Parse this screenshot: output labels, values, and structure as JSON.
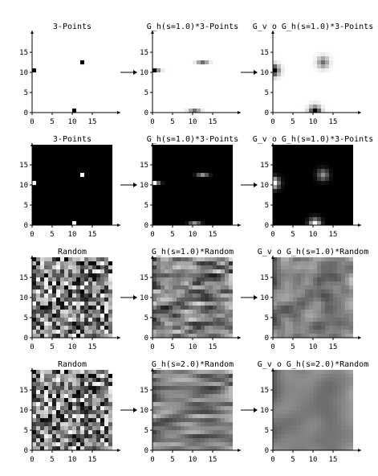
{
  "figure": {
    "background": "#ffffff",
    "arrow_glyph": "→"
  },
  "chart_data": [
    {
      "row": 0,
      "col": 0,
      "type": "heatmap",
      "title": "3-Points",
      "colormap": "gray_r",
      "xlim": [
        0,
        20
      ],
      "ylim": [
        0,
        20
      ],
      "xticks": [
        0,
        5,
        10,
        15
      ],
      "yticks": [
        0,
        5,
        10,
        15
      ],
      "signal": "points",
      "points": [
        [
          0,
          10
        ],
        [
          12,
          12
        ],
        [
          10,
          0
        ]
      ],
      "blur_h": 0,
      "blur_v": 0
    },
    {
      "row": 0,
      "col": 1,
      "type": "heatmap",
      "title": "G_h(s=1.0)*3-Points",
      "colormap": "gray_r",
      "xlim": [
        0,
        20
      ],
      "ylim": [
        0,
        20
      ],
      "xticks": [
        0,
        5,
        10,
        15
      ],
      "yticks": [
        0,
        5,
        10,
        15
      ],
      "signal": "points",
      "points": [
        [
          0,
          10
        ],
        [
          12,
          12
        ],
        [
          10,
          0
        ]
      ],
      "blur_h": 1.0,
      "blur_v": 0
    },
    {
      "row": 0,
      "col": 2,
      "type": "heatmap",
      "title": "G_v o G_h(s=1.0)*3-Points",
      "colormap": "gray_r",
      "xlim": [
        0,
        20
      ],
      "ylim": [
        0,
        20
      ],
      "xticks": [
        0,
        5,
        10,
        15
      ],
      "yticks": [
        0,
        5,
        10,
        15
      ],
      "signal": "points",
      "points": [
        [
          0,
          10
        ],
        [
          12,
          12
        ],
        [
          10,
          0
        ]
      ],
      "blur_h": 1.0,
      "blur_v": 1.0
    },
    {
      "row": 1,
      "col": 0,
      "type": "heatmap",
      "title": "3-Points",
      "colormap": "gray",
      "xlim": [
        0,
        20
      ],
      "ylim": [
        0,
        20
      ],
      "xticks": [
        0,
        5,
        10,
        15
      ],
      "yticks": [
        0,
        5,
        10,
        15
      ],
      "signal": "points",
      "points": [
        [
          0,
          10
        ],
        [
          12,
          12
        ],
        [
          10,
          0
        ]
      ],
      "blur_h": 0,
      "blur_v": 0
    },
    {
      "row": 1,
      "col": 1,
      "type": "heatmap",
      "title": "G_h(s=1.0)*3-Points",
      "colormap": "gray",
      "xlim": [
        0,
        20
      ],
      "ylim": [
        0,
        20
      ],
      "xticks": [
        0,
        5,
        10,
        15
      ],
      "yticks": [
        0,
        5,
        10,
        15
      ],
      "signal": "points",
      "points": [
        [
          0,
          10
        ],
        [
          12,
          12
        ],
        [
          10,
          0
        ]
      ],
      "blur_h": 1.0,
      "blur_v": 0
    },
    {
      "row": 1,
      "col": 2,
      "type": "heatmap",
      "title": "G_v o G_h(s=1.0)*3-Points",
      "colormap": "gray",
      "xlim": [
        0,
        20
      ],
      "ylim": [
        0,
        20
      ],
      "xticks": [
        0,
        5,
        10,
        15
      ],
      "yticks": [
        0,
        5,
        10,
        15
      ],
      "signal": "points",
      "points": [
        [
          0,
          10
        ],
        [
          12,
          12
        ],
        [
          10,
          0
        ]
      ],
      "blur_h": 1.0,
      "blur_v": 1.0
    },
    {
      "row": 2,
      "col": 0,
      "type": "heatmap",
      "title": "Random",
      "colormap": "gray",
      "xlim": [
        0,
        20
      ],
      "ylim": [
        0,
        20
      ],
      "xticks": [
        0,
        5,
        10,
        15
      ],
      "yticks": [
        0,
        5,
        10,
        15
      ],
      "signal": "random",
      "blur_h": 0,
      "blur_v": 0
    },
    {
      "row": 2,
      "col": 1,
      "type": "heatmap",
      "title": "G_h(s=1.0)*Random",
      "colormap": "gray",
      "xlim": [
        0,
        20
      ],
      "ylim": [
        0,
        20
      ],
      "xticks": [
        0,
        5,
        10,
        15
      ],
      "yticks": [
        0,
        5,
        10,
        15
      ],
      "signal": "random",
      "blur_h": 1.0,
      "blur_v": 0
    },
    {
      "row": 2,
      "col": 2,
      "type": "heatmap",
      "title": "G_v o G_h(s=1.0)*Random",
      "colormap": "gray",
      "xlim": [
        0,
        20
      ],
      "ylim": [
        0,
        20
      ],
      "xticks": [
        0,
        5,
        10,
        15
      ],
      "yticks": [
        0,
        5,
        10,
        15
      ],
      "signal": "random",
      "blur_h": 1.0,
      "blur_v": 1.0
    },
    {
      "row": 3,
      "col": 0,
      "type": "heatmap",
      "title": "Random",
      "colormap": "gray",
      "xlim": [
        0,
        20
      ],
      "ylim": [
        0,
        20
      ],
      "xticks": [
        0,
        5,
        10,
        15
      ],
      "yticks": [
        0,
        5,
        10,
        15
      ],
      "signal": "random",
      "blur_h": 0,
      "blur_v": 0
    },
    {
      "row": 3,
      "col": 1,
      "type": "heatmap",
      "title": "G_h(s=2.0)*Random",
      "colormap": "gray",
      "xlim": [
        0,
        20
      ],
      "ylim": [
        0,
        20
      ],
      "xticks": [
        0,
        5,
        10,
        15
      ],
      "yticks": [
        0,
        5,
        10,
        15
      ],
      "signal": "random",
      "blur_h": 2.0,
      "blur_v": 0
    },
    {
      "row": 3,
      "col": 2,
      "type": "heatmap",
      "title": "G_v o G_h(s=2.0)*Random",
      "colormap": "gray",
      "xlim": [
        0,
        20
      ],
      "ylim": [
        0,
        20
      ],
      "xticks": [
        0,
        5,
        10,
        15
      ],
      "yticks": [
        0,
        5,
        10,
        15
      ],
      "signal": "random",
      "blur_h": 2.0,
      "blur_v": 2.0
    }
  ]
}
